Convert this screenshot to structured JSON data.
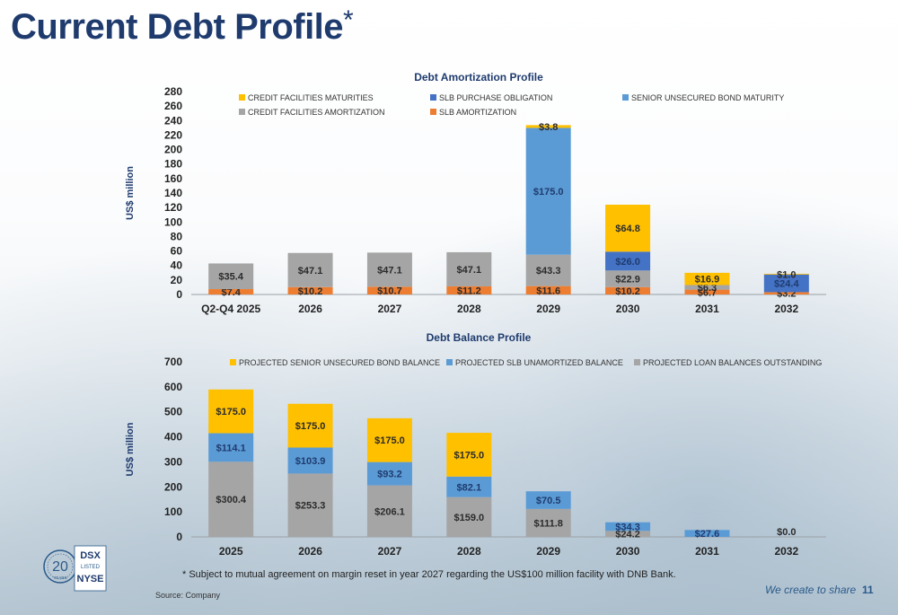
{
  "page": {
    "title": "Current Debt Profile",
    "title_marker": "*",
    "footnote": "*  Subject to mutual agreement on margin reset in year 2027 regarding the US$100 million facility with DNB Bank.",
    "source": "Source: Company",
    "tagline": "We create to share",
    "page_number": "11"
  },
  "chart_data": [
    {
      "type": "bar",
      "stacked": true,
      "title": "Debt Amortization Profile",
      "ylabel": "US$ million",
      "ylim": [
        0,
        280
      ],
      "yticks": [
        0,
        20,
        40,
        60,
        80,
        100,
        120,
        140,
        160,
        180,
        200,
        220,
        240,
        260,
        280
      ],
      "categories": [
        "Q2-Q4 2025",
        "2026",
        "2027",
        "2028",
        "2029",
        "2030",
        "2031",
        "2032"
      ],
      "series": [
        {
          "name": "SLB AMORTIZATION",
          "color": "#ED7D31",
          "values": [
            7.4,
            10.2,
            10.7,
            11.2,
            11.6,
            10.2,
            6.7,
            3.2
          ],
          "labels": [
            "$7.4",
            "$10.2",
            "$10.7",
            "$11.2",
            "$11.6",
            "$10.2",
            "$6.7",
            "$3.2"
          ]
        },
        {
          "name": "CREDIT FACILITIES AMORTIZATION",
          "color": "#A5A5A5",
          "values": [
            35.4,
            47.1,
            47.1,
            47.1,
            43.3,
            22.9,
            6.3,
            0
          ],
          "labels": [
            "$35.4",
            "$47.1",
            "$47.1",
            "$47.1",
            "$43.3",
            "$22.9",
            "$6.3",
            ""
          ]
        },
        {
          "name": "SLB PURCHASE OBLIGATION",
          "color": "#4472C4",
          "values": [
            0,
            0,
            0,
            0,
            0,
            26.0,
            0,
            24.4
          ],
          "labels": [
            "",
            "",
            "",
            "",
            "",
            "$26.0",
            "",
            "$24.4"
          ]
        },
        {
          "name": "SENIOR UNSECURED BOND MATURITY",
          "color": "#5B9BD5",
          "values": [
            0,
            0,
            0,
            0,
            175.0,
            0,
            0,
            0
          ],
          "labels": [
            "",
            "",
            "",
            "",
            "$175.0",
            "",
            "",
            ""
          ]
        },
        {
          "name": "CREDIT FACILITIES MATURITIES",
          "color": "#FFC000",
          "values": [
            0,
            0,
            0,
            0,
            3.8,
            64.8,
            16.9,
            1.0
          ],
          "labels": [
            "",
            "",
            "",
            "",
            "$3.8",
            "$64.8",
            "$16.9",
            "$1.0"
          ]
        }
      ],
      "legend": [
        {
          "name": "CREDIT FACILITIES MATURITIES",
          "color": "#FFC000"
        },
        {
          "name": "SLB PURCHASE OBLIGATION",
          "color": "#4472C4"
        },
        {
          "name": "SENIOR UNSECURED BOND MATURITY",
          "color": "#5B9BD5"
        },
        {
          "name": "CREDIT FACILITIES AMORTIZATION",
          "color": "#A5A5A5"
        },
        {
          "name": "SLB AMORTIZATION",
          "color": "#ED7D31"
        }
      ],
      "legend_position": "top"
    },
    {
      "type": "bar",
      "stacked": true,
      "title": "Debt Balance Profile",
      "ylabel": "US$ million",
      "ylim": [
        0,
        700
      ],
      "yticks": [
        0,
        100,
        200,
        300,
        400,
        500,
        600,
        700
      ],
      "categories": [
        "2025",
        "2026",
        "2027",
        "2028",
        "2029",
        "2030",
        "2031",
        "2032"
      ],
      "series": [
        {
          "name": "PROJECTED LOAN BALANCES OUTSTANDING",
          "color": "#A5A5A5",
          "values": [
            300.4,
            253.3,
            206.1,
            159.0,
            111.8,
            24.2,
            0,
            0
          ],
          "labels": [
            "$300.4",
            "$253.3",
            "$206.1",
            "$159.0",
            "$111.8",
            "$24.2",
            "",
            "$0.0"
          ]
        },
        {
          "name": "PROJECTED SLB UNAMORTIZED BALANCE",
          "color": "#5B9BD5",
          "values": [
            114.1,
            103.9,
            93.2,
            82.1,
            70.5,
            34.3,
            27.6,
            0
          ],
          "labels": [
            "$114.1",
            "$103.9",
            "$93.2",
            "$82.1",
            "$70.5",
            "$34.3",
            "$27.6",
            ""
          ]
        },
        {
          "name": "PROJECTED SENIOR UNSECURED BOND BALANCE",
          "color": "#FFC000",
          "values": [
            175.0,
            175.0,
            175.0,
            175.0,
            0,
            0,
            0,
            0
          ],
          "labels": [
            "$175.0",
            "$175.0",
            "$175.0",
            "$175.0",
            "",
            "",
            "",
            ""
          ]
        }
      ],
      "legend": [
        {
          "name": "PROJECTED SENIOR UNSECURED BOND BALANCE",
          "color": "#FFC000"
        },
        {
          "name": "PROJECTED SLB UNAMORTIZED BALANCE",
          "color": "#5B9BD5"
        },
        {
          "name": "PROJECTED LOAN BALANCES OUTSTANDING",
          "color": "#A5A5A5"
        }
      ],
      "legend_position": "top"
    }
  ]
}
